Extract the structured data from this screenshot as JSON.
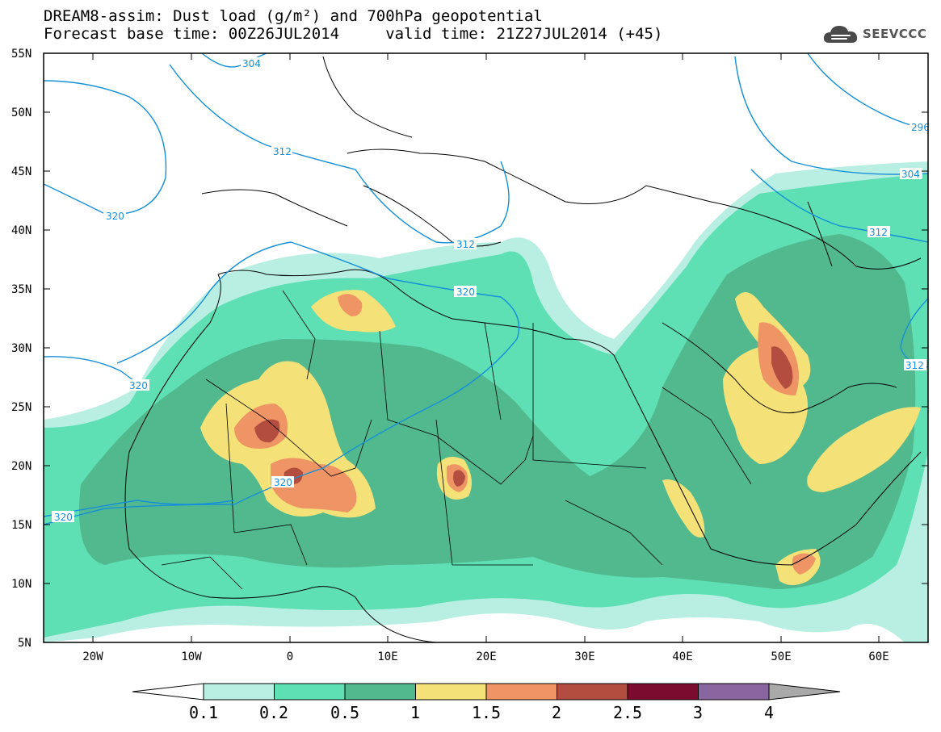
{
  "header": {
    "title_line1": "DREAM8-assim: Dust load (g/m²) and 700hPa geopotential",
    "title_line2": "Forecast base time: 00Z26JUL2014     valid time: 21Z27JUL2014 (+45)"
  },
  "logo": {
    "text": "SEEVCCC",
    "icon": "cloud-logo-icon"
  },
  "map": {
    "lon_range": [
      -25,
      65
    ],
    "lat_range": [
      5,
      55
    ],
    "lat_ticks": [
      "55N",
      "50N",
      "45N",
      "40N",
      "35N",
      "30N",
      "25N",
      "20N",
      "15N",
      "10N",
      "5N"
    ],
    "lon_ticks": [
      "20W",
      "10W",
      "0",
      "10E",
      "20E",
      "30E",
      "40E",
      "50E",
      "60E"
    ],
    "isoline_labels": [
      "304",
      "312",
      "320",
      "312",
      "320",
      "320",
      "320",
      "320",
      "296",
      "304",
      "312",
      "312"
    ],
    "colors": {
      "coast": "#000000",
      "isoline": "#1590d8"
    }
  },
  "colorbar": {
    "levels": [
      "0.1",
      "0.2",
      "0.5",
      "1",
      "1.5",
      "2",
      "2.5",
      "3",
      "4"
    ],
    "colors": [
      "#b9efe3",
      "#5ee0b4",
      "#52b98f",
      "#f4e177",
      "#ee9465",
      "#b24d3f",
      "#7b0c2f",
      "#8a66a0",
      "#a9a9a9"
    ],
    "under_color": "#ffffff",
    "over_color": "#a9a9a9"
  }
}
